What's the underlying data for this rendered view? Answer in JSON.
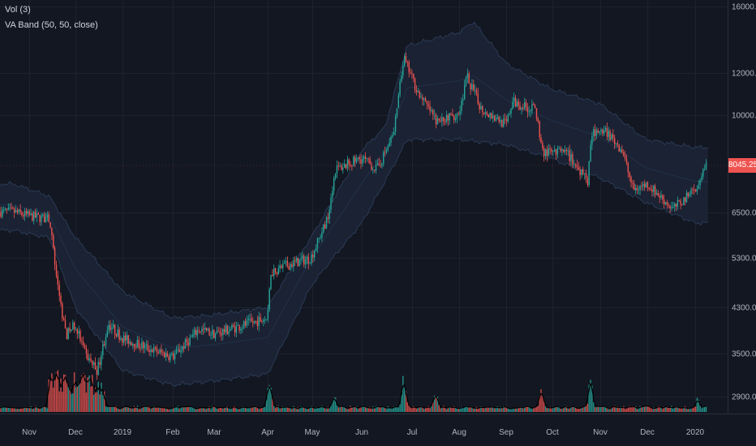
{
  "legend": {
    "vol_label": "Vol (3)",
    "va_band_label": "VA Band (50, 50, close)"
  },
  "price_axis": {
    "ticks": [
      "16000.00",
      "12000.00",
      "10000.00",
      "6500.00",
      "5300.00",
      "4300.00",
      "3500.00",
      "2900.00"
    ],
    "last_price_label": "8045.25"
  },
  "time_axis": {
    "labels": [
      "Nov",
      "Dec",
      "2019",
      "Feb",
      "Mar",
      "Apr",
      "May",
      "Jun",
      "Jul",
      "Aug",
      "Sep",
      "Oct",
      "Nov",
      "Dec",
      "2020"
    ]
  },
  "colors": {
    "background": "#131722",
    "up": "#26a69a",
    "down": "#ef5350",
    "band_fill": "#1c2536",
    "band_line": "#2a3b55",
    "volume_line": "#000000",
    "grid": "#1e222d",
    "separator": "#2a2e39"
  },
  "chart_data": {
    "type": "line",
    "title": "",
    "scale": "log",
    "grid": true,
    "ylim": [
      2600,
      16500
    ],
    "price_ticks": [
      16000,
      12000,
      10000,
      6500,
      5300,
      4300,
      3500,
      2900
    ],
    "month_labels": [
      "Nov",
      "Dec",
      "2019",
      "Feb",
      "Mar",
      "Apr",
      "May",
      "Jun",
      "Jul",
      "Aug",
      "Sep",
      "Oct",
      "Nov",
      "Dec",
      "2020"
    ],
    "last_price": 8045.25,
    "series": [
      {
        "name": "Price",
        "type": "candlestick",
        "close_path": [
          [
            "Oct 20",
            6520
          ],
          [
            "Nov 1",
            6400
          ],
          [
            "Nov 14",
            6300
          ],
          [
            "Nov 20",
            4600
          ],
          [
            "Nov 25",
            3800
          ],
          [
            "Dec 1",
            4000
          ],
          [
            "Dec 7",
            3500
          ],
          [
            "Dec 15",
            3250
          ],
          [
            "Dec 22",
            4000
          ],
          [
            "Dec 31",
            3750
          ],
          [
            "Jan 10",
            3650
          ],
          [
            "Jan 20",
            3550
          ],
          [
            "Jan 31",
            3450
          ],
          [
            "Feb 10",
            3650
          ],
          [
            "Feb 20",
            3900
          ],
          [
            "Mar 1",
            3820
          ],
          [
            "Mar 15",
            3950
          ],
          [
            "Mar 31",
            4100
          ],
          [
            "Apr 3",
            5000
          ],
          [
            "Apr 15",
            5150
          ],
          [
            "Apr 30",
            5300
          ],
          [
            "May 10",
            6300
          ],
          [
            "May 15",
            7900
          ],
          [
            "May 31",
            8300
          ],
          [
            "Jun 10",
            7900
          ],
          [
            "Jun 20",
            9200
          ],
          [
            "Jun 26",
            12800
          ],
          [
            "Jul 5",
            11000
          ],
          [
            "Jul 17",
            9700
          ],
          [
            "Jul 31",
            10100
          ],
          [
            "Aug 6",
            11800
          ],
          [
            "Aug 15",
            10300
          ],
          [
            "Aug 31",
            9600
          ],
          [
            "Sep 5",
            10600
          ],
          [
            "Sep 20",
            10200
          ],
          [
            "Sep 25",
            8500
          ],
          [
            "Oct 10",
            8500
          ],
          [
            "Oct 23",
            7500
          ],
          [
            "Oct 26",
            9300
          ],
          [
            "Nov 5",
            9300
          ],
          [
            "Nov 15",
            8600
          ],
          [
            "Nov 22",
            7200
          ],
          [
            "Dec 1",
            7400
          ],
          [
            "Dec 17",
            6600
          ],
          [
            "Dec 31",
            7200
          ],
          [
            "Jan 7",
            8045.25
          ]
        ]
      },
      {
        "name": "VA Band upper",
        "type": "line",
        "path": [
          [
            "Oct 20",
            7400
          ],
          [
            "Nov 14",
            7000
          ],
          [
            "Dec 1",
            5800
          ],
          [
            "Dec 31",
            4600
          ],
          [
            "Jan 31",
            4100
          ],
          [
            "Feb 28",
            4150
          ],
          [
            "Mar 31",
            4300
          ],
          [
            "Apr 30",
            5800
          ],
          [
            "May 31",
            8600
          ],
          [
            "Jun 15",
            9500
          ],
          [
            "Jun 28",
            13500
          ],
          [
            "Jul 31",
            14300
          ],
          [
            "Aug 10",
            15000
          ],
          [
            "Aug 31",
            12500
          ],
          [
            "Sep 30",
            11200
          ],
          [
            "Oct 31",
            10500
          ],
          [
            "Nov 30",
            9000
          ],
          [
            "Dec 31",
            8700
          ],
          [
            "Jan 7",
            8700
          ]
        ]
      },
      {
        "name": "VA Band lower",
        "type": "line",
        "path": [
          [
            "Oct 20",
            6000
          ],
          [
            "Nov 14",
            5800
          ],
          [
            "Dec 1",
            4300
          ],
          [
            "Dec 31",
            3250
          ],
          [
            "Jan 31",
            3050
          ],
          [
            "Feb 28",
            3100
          ],
          [
            "Mar 31",
            3200
          ],
          [
            "Apr 30",
            4700
          ],
          [
            "May 31",
            6200
          ],
          [
            "Jun 15",
            7500
          ],
          [
            "Jun 28",
            9000
          ],
          [
            "Jul 31",
            9000
          ],
          [
            "Aug 31",
            8800
          ],
          [
            "Sep 30",
            8300
          ],
          [
            "Oct 31",
            7600
          ],
          [
            "Nov 30",
            6800
          ],
          [
            "Dec 31",
            6200
          ],
          [
            "Jan 7",
            6200
          ]
        ]
      },
      {
        "name": "Vol (3)",
        "type": "histogram",
        "note_levels": "relative volume, 0-1",
        "peaks": [
          [
            "Nov 19",
            0.85
          ],
          [
            "Nov 25",
            0.7
          ],
          [
            "Apr 2",
            0.6
          ],
          [
            "May 14",
            0.35
          ],
          [
            "Jun 26",
            0.65
          ],
          [
            "Jul 16",
            0.45
          ],
          [
            "Sep 24",
            0.4
          ],
          [
            "Oct 25",
            0.55
          ],
          [
            "Jan 3",
            0.25
          ]
        ]
      }
    ]
  }
}
